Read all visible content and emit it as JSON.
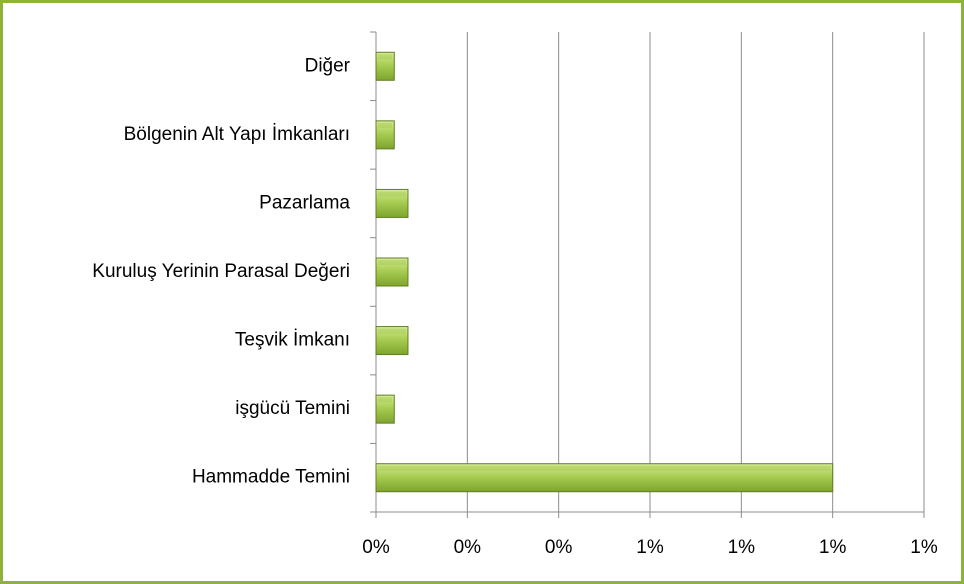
{
  "chart_data": {
    "type": "hbar",
    "categories": [
      "Diğer",
      "Bölgenin Alt Yapı İmkanları",
      "Pazarlama",
      "Kuruluş Yerinin Parasal Değeri",
      "Teşvik İmkanı",
      "işgücü Temini",
      "Hammadde Temini"
    ],
    "values": [
      0.04,
      0.04,
      0.07,
      0.07,
      0.07,
      0.04,
      1.0
    ],
    "color": "#9bc243",
    "xlim": [
      0,
      1.2
    ],
    "xticks": [
      {
        "value": 0,
        "label": "0%"
      },
      {
        "value": 0.2,
        "label": "0%"
      },
      {
        "value": 0.4,
        "label": "0%"
      },
      {
        "value": 0.6,
        "label": "1%"
      },
      {
        "value": 0.8,
        "label": "1%"
      },
      {
        "value": 1.0,
        "label": "1%"
      },
      {
        "value": 1.2,
        "label": "1%"
      }
    ],
    "grid": true
  }
}
